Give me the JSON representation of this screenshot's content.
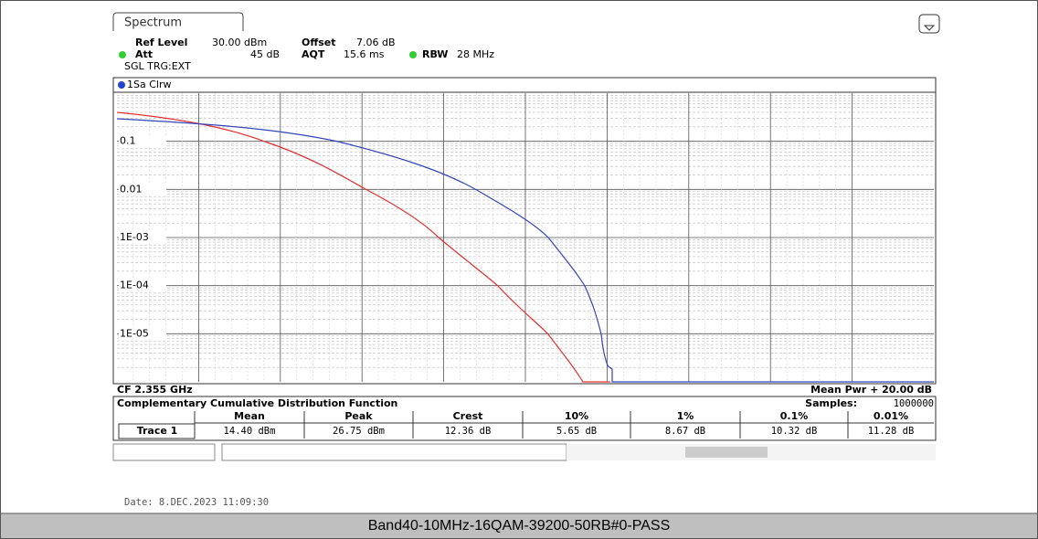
{
  "header": {
    "tab": "Spectrum",
    "ref_level_label": "Ref Level",
    "ref_level": "30.00 dBm",
    "offset_label": "Offset",
    "offset": "7.06 dB",
    "att_label": "Att",
    "att": "45 dB",
    "aqt_label": "AQT",
    "aqt": "15.6 ms",
    "rbw_label": "RBW",
    "rbw": "28 MHz",
    "mode": "SGL TRG:EXT"
  },
  "plot": {
    "trace_label": "1Sa Clrw",
    "y_labels": [
      "0.1",
      "0.01",
      "1E-03",
      "1E-04",
      "1E-05"
    ],
    "cf": "CF 2.355 GHz",
    "x_span": "Mean Pwr + 20.00 dB"
  },
  "table": {
    "title": "Complementary Cumulative Distribution Function",
    "samples_label": "Samples:",
    "samples": "1000000",
    "columns": [
      "Mean",
      "Peak",
      "Crest",
      "10%",
      "1%",
      "0.1%",
      "0.01%"
    ],
    "rows": [
      [
        "Trace 1",
        "14.40 dBm",
        "26.75 dBm",
        "12.36 dB",
        "5.65 dB",
        "8.67 dB",
        "10.32 dB",
        "11.28 dB"
      ]
    ]
  },
  "date": "Date: 8.DEC.2023 11:09:30",
  "caption": "Band40-10MHz-16QAM-39200-50RB#0-PASS"
}
